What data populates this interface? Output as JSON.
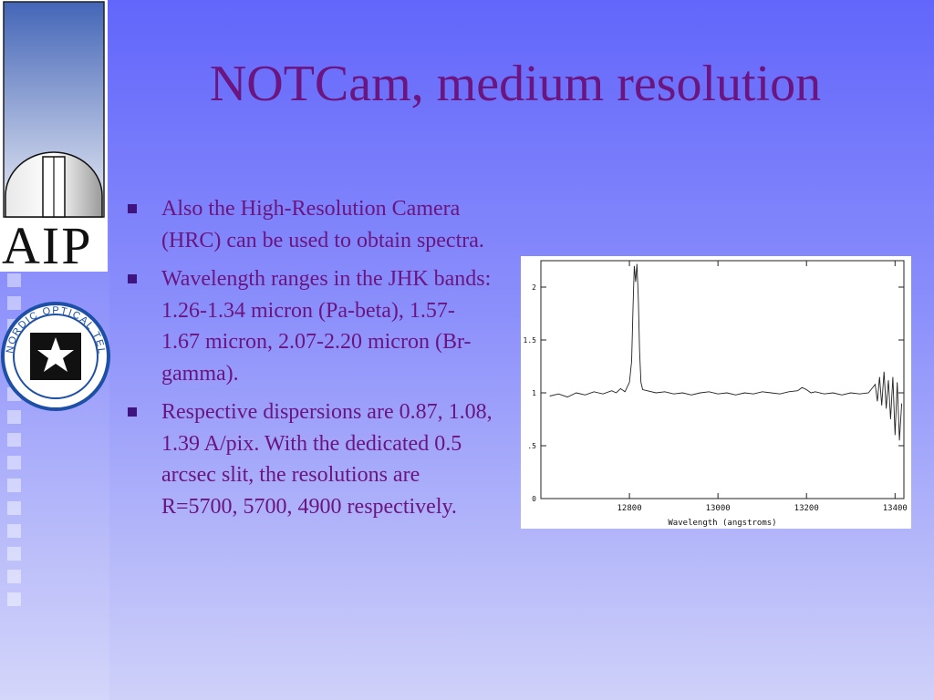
{
  "slide": {
    "title": "NOTCam, medium resolution",
    "bullets": [
      "Also the High-Resolution Camera (HRC) can be used to obtain spectra.",
      "Wavelength ranges in the JHK bands: 1.26-1.34 micron (Pa-beta), 1.57-1.67 micron, 2.07-2.20 micron (Br-gamma).",
      "Respective dispersions are 0.87, 1.08, 1.39 A/pix. With the dedicated 0.5 arcsec slit, the resolutions are R=5700, 5700, 4900 respectively."
    ],
    "colors": {
      "title": "#6a1580",
      "bullet": "#3f1380",
      "background": "#6266fb"
    }
  },
  "logos": {
    "aip": {
      "text": "AIP",
      "icon": "observatory-dome-icon"
    },
    "not": {
      "text": "NORDIC OPTICAL TELESCOPE",
      "icon": "star-emblem-icon"
    }
  },
  "chart_data": {
    "type": "line",
    "xlabel": "Wavelength (angstroms)",
    "ylabel": "",
    "xlim": [
      12600,
      13420
    ],
    "ylim": [
      0,
      2.25
    ],
    "xticks": [
      12800,
      13000,
      13200,
      13400
    ],
    "xtick_labels": [
      "12800",
      "13000",
      "13200",
      "13400"
    ],
    "yticks": [
      0,
      0.5,
      1,
      1.5,
      2
    ],
    "ytick_labels": [
      "0",
      ".5",
      "1",
      "1.5",
      "2"
    ],
    "grid": false,
    "series": [
      {
        "x": [
          12620,
          12640,
          12660,
          12680,
          12700,
          12720,
          12740,
          12760,
          12770,
          12780,
          12790,
          12800,
          12805,
          12808,
          12811,
          12814,
          12817,
          12820,
          12823,
          12826,
          12830,
          12840,
          12860,
          12880,
          12900,
          12920,
          12940,
          12960,
          12980,
          13000,
          13020,
          13040,
          13060,
          13080,
          13100,
          13120,
          13140,
          13160,
          13180,
          13190,
          13200,
          13210,
          13220,
          13240,
          13260,
          13280,
          13300,
          13320,
          13340,
          13355,
          13360,
          13365,
          13370,
          13375,
          13380,
          13385,
          13390,
          13395,
          13400,
          13405,
          13410,
          13415
        ],
        "y": [
          0.97,
          0.99,
          0.96,
          1.0,
          0.98,
          1.01,
          0.99,
          1.02,
          1.0,
          1.04,
          1.01,
          1.1,
          1.3,
          1.8,
          2.2,
          2.05,
          2.22,
          1.9,
          1.4,
          1.1,
          1.03,
          1.02,
          1.0,
          1.01,
          0.99,
          1.0,
          0.98,
          1.0,
          1.01,
          0.99,
          1.0,
          0.98,
          1.0,
          0.99,
          1.01,
          1.0,
          0.99,
          1.01,
          1.02,
          1.05,
          1.03,
          1.0,
          1.01,
          0.99,
          1.0,
          0.98,
          1.0,
          0.99,
          1.0,
          1.08,
          0.92,
          1.15,
          0.88,
          1.2,
          0.85,
          1.12,
          0.75,
          1.15,
          0.6,
          1.1,
          0.55,
          0.9
        ]
      }
    ]
  }
}
